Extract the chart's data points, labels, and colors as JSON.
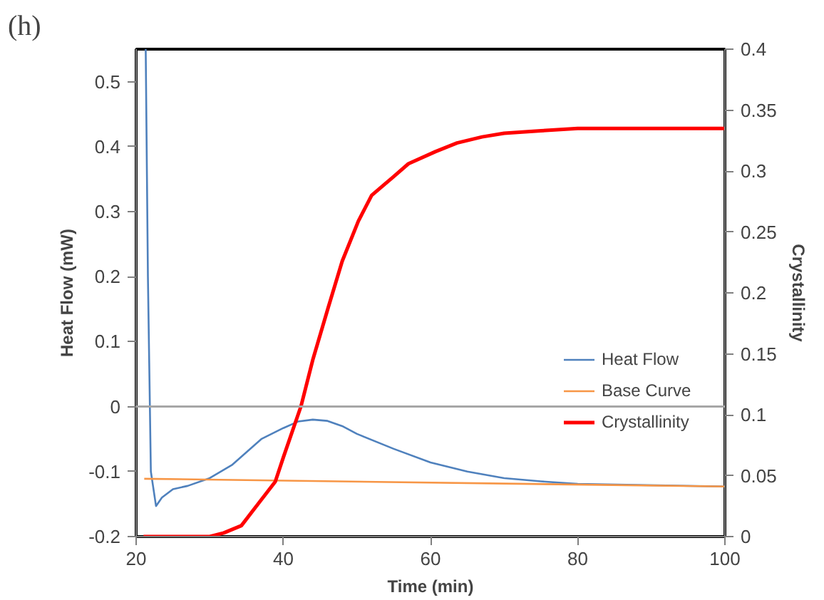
{
  "chart_data": {
    "type": "line",
    "annotations": [
      "(h)"
    ],
    "xlabel": "Time (min)",
    "ylabel": "Heat Flow (mW)",
    "y2label": "Crystallinity",
    "xlim": [
      20,
      100
    ],
    "xticks": [
      20,
      40,
      60,
      80,
      100
    ],
    "ylim": [
      -0.2,
      0.55
    ],
    "yticks": [
      -0.2,
      -0.1,
      0,
      0.1,
      0.2,
      0.3,
      0.4,
      0.5
    ],
    "y2lim": [
      0,
      0.4
    ],
    "y2ticks": [
      0,
      0.05,
      0.1,
      0.15,
      0.2,
      0.25,
      0.3,
      0.35,
      0.4
    ],
    "grid": false,
    "legend": "bottom right",
    "ref_lines": [
      {
        "axis": "y",
        "value": 0,
        "color": "#a6a6a6"
      }
    ],
    "series": [
      {
        "name": "Heat Flow",
        "color": "#4f81bd",
        "x": [
          21.3,
          21.6,
          22.0,
          22.7,
          23.5,
          25,
          27,
          30,
          33,
          35,
          37,
          40,
          42,
          44,
          46,
          48,
          50,
          55,
          60,
          65,
          70,
          75,
          80,
          100
        ],
        "values": [
          0.55,
          0.2,
          -0.1,
          -0.153,
          -0.14,
          -0.127,
          -0.122,
          -0.11,
          -0.09,
          -0.07,
          -0.05,
          -0.033,
          -0.023,
          -0.02,
          -0.022,
          -0.03,
          -0.042,
          -0.065,
          -0.086,
          -0.1,
          -0.11,
          -0.115,
          -0.119,
          -0.123
        ]
      },
      {
        "name": "Base Curve",
        "color": "#f79646",
        "x": [
          21.1,
          100
        ],
        "values": [
          -0.111,
          -0.123
        ]
      },
      {
        "name": "Crystallinity",
        "color": "#ff0000",
        "axis": "y2",
        "x": [
          21,
          30,
          31.9,
          34.3,
          36.6,
          38.9,
          40,
          42.4,
          44,
          46.1,
          48,
          50.2,
          52,
          54.9,
          57,
          60.7,
          63.6,
          67,
          70,
          75,
          80,
          90,
          100
        ],
        "values": [
          0,
          0,
          0.003,
          0.009,
          0.027,
          0.045,
          0.065,
          0.107,
          0.145,
          0.188,
          0.226,
          0.259,
          0.28,
          0.295,
          0.306,
          0.316,
          0.323,
          0.328,
          0.331,
          0.333,
          0.335,
          0.335,
          0.335
        ]
      }
    ]
  }
}
